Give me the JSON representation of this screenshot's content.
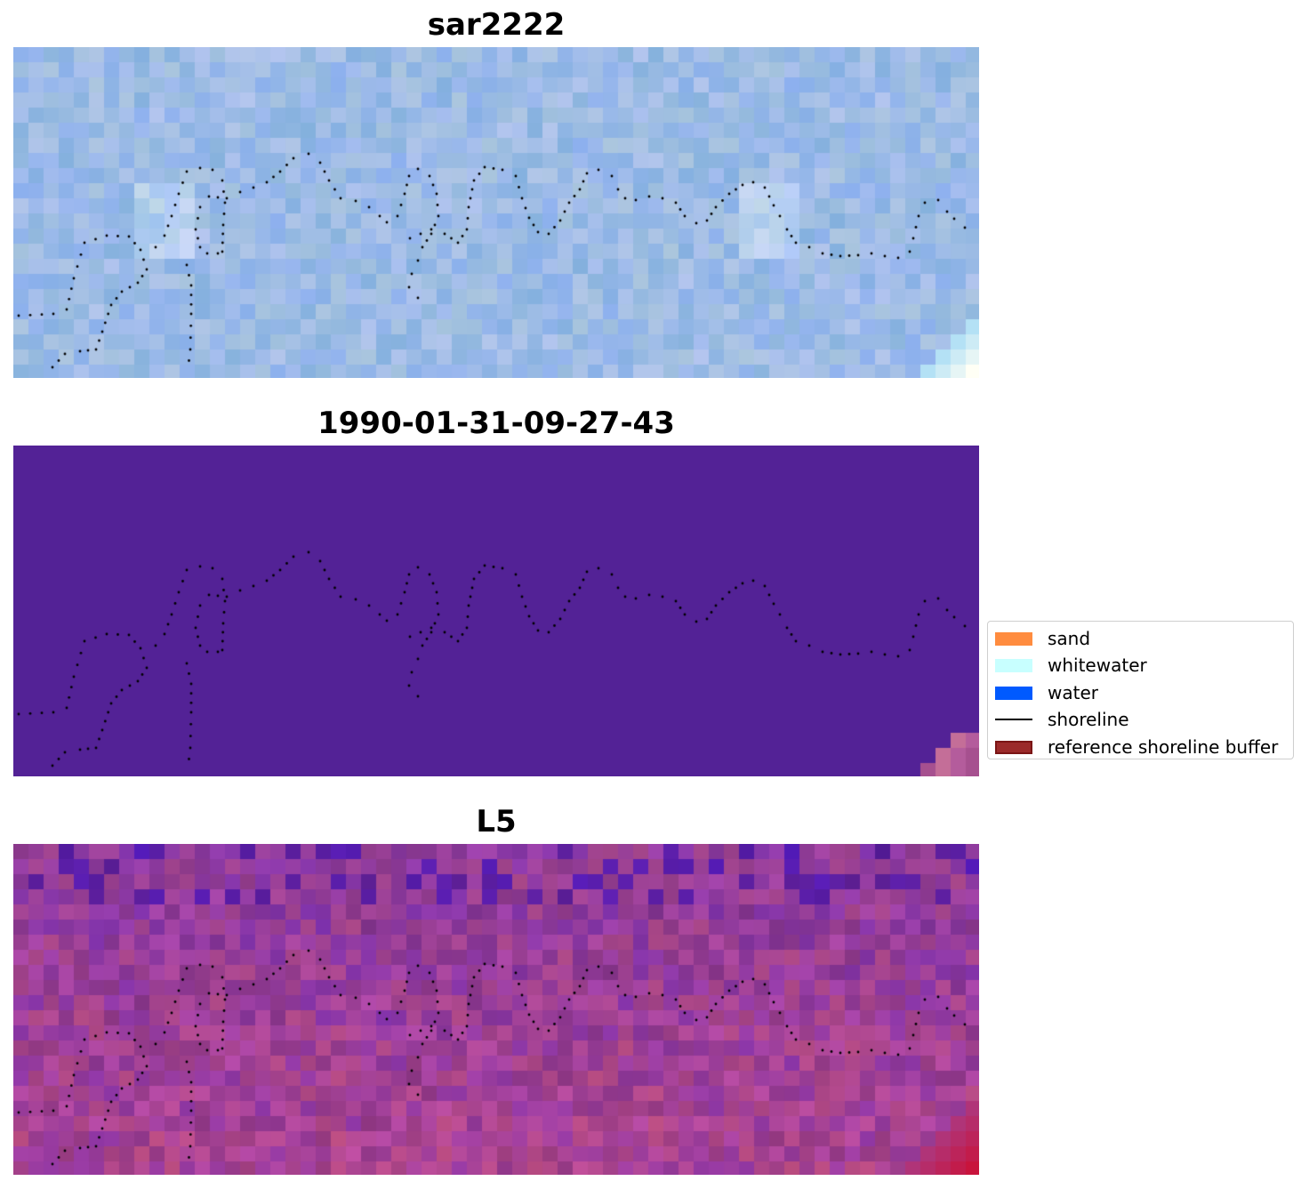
{
  "panels": [
    {
      "title": "sar2222",
      "style": "sar"
    },
    {
      "title": "1990-01-31-09-27-43",
      "style": "classified"
    },
    {
      "title": "L5",
      "style": "l5"
    }
  ],
  "legend": {
    "items": [
      {
        "label": "sand",
        "color": "#ff8c3f",
        "kind": "patch"
      },
      {
        "label": "whitewater",
        "color": "#c8ffff",
        "kind": "patch"
      },
      {
        "label": "water",
        "color": "#005aff",
        "kind": "patch"
      },
      {
        "label": "shoreline",
        "color": "#000000",
        "kind": "line"
      },
      {
        "label": "reference shoreline buffer",
        "color": "#9b2a2a",
        "edge": "#7a1515",
        "kind": "patch"
      }
    ]
  },
  "colors": {
    "sar_base": "#9cbbe6",
    "classified_base": "#532296",
    "l5_base": "#8d3a9c"
  }
}
